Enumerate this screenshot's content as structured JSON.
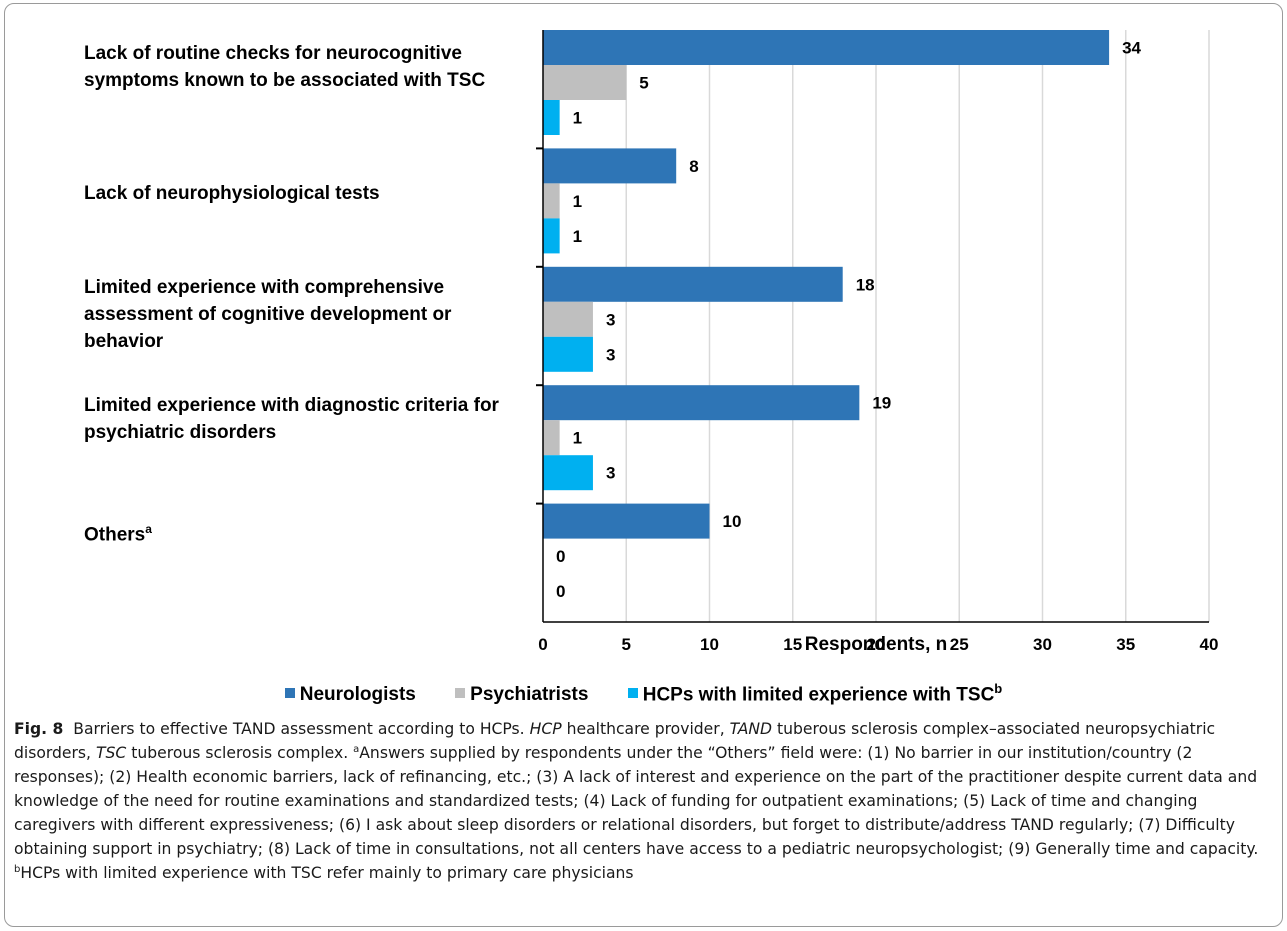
{
  "chart_data": {
    "type": "bar",
    "orientation": "horizontal",
    "categories": [
      "Lack of routine checks for neurocognitive symptoms known to be associated with TSC",
      "Lack of neurophysiological tests",
      "Limited experience with comprehensive assessment of cognitive development or behavior",
      "Limited experience with diagnostic criteria for psychiatric disorders",
      "Others"
    ],
    "series": [
      {
        "name": "Neurologists",
        "color": "#2e75b6",
        "values": [
          34,
          8,
          18,
          19,
          10
        ]
      },
      {
        "name": "Psychiatrists",
        "color": "#bfbfbf",
        "values": [
          5,
          1,
          3,
          1,
          0
        ]
      },
      {
        "name": "HCPs with limited experience with TSC",
        "color": "#00b0f0",
        "values": [
          1,
          1,
          3,
          3,
          0
        ]
      }
    ],
    "xlabel": "Respondents, n",
    "ylabel": "",
    "xlim": [
      0,
      40
    ],
    "xticks": [
      0,
      5,
      10,
      15,
      20,
      25,
      30,
      35,
      40
    ],
    "grid": "vertical",
    "legend": "bottom"
  },
  "labels": {
    "cat0": "Lack of routine checks for neurocognitive symptoms known to be associated with TSC",
    "cat1": "Lack of neurophysiological tests",
    "cat2": "Limited experience with comprehensive assessment of cognitive development or behavior",
    "cat3": "Limited experience with diagnostic criteria for psychiatric disorders",
    "cat4": "Others",
    "cat4_sup": "a"
  },
  "legend": {
    "neurologists": "Neurologists",
    "psychiatrists": "Psychiatrists",
    "hcps": "HCPs with limited experience with TSC",
    "hcps_sup": "b"
  },
  "caption": {
    "fig": "Fig. 8",
    "t1": "Barriers to effective TAND assessment according to HCPs.",
    "i1": "HCP",
    "t2": "healthcare provider,",
    "i2": "TAND",
    "t3": "tuberous sclerosis complex–associated neuropsychiatric disorders,",
    "i3": "TSC",
    "t4": "tuberous sclerosis complex.",
    "sup_a": "a",
    "t5": "Answers supplied by respondents under the “Others” field were: (1) No barrier in our institution/country (2 responses); (2) Health economic barriers, lack of refinancing, etc.; (3) A lack of interest and experience on the part of the practitioner despite current data and knowledge of the need for routine examinations and standardized tests; (4) Lack of funding for outpatient examinations; (5) Lack of time and changing caregivers with different expressiveness; (6) I ask about sleep disorders or relational disorders, but forget to distribute/address TAND regularly; (7) Difficulty obtaining support in psychiatry; (8) Lack of time in consultations, not all centers have access to a pediatric neuropsychologist; (9) Generally time and capacity.",
    "sup_b": "b",
    "t6": "HCPs with limited experience with TSC refer mainly to primary care physicians"
  }
}
